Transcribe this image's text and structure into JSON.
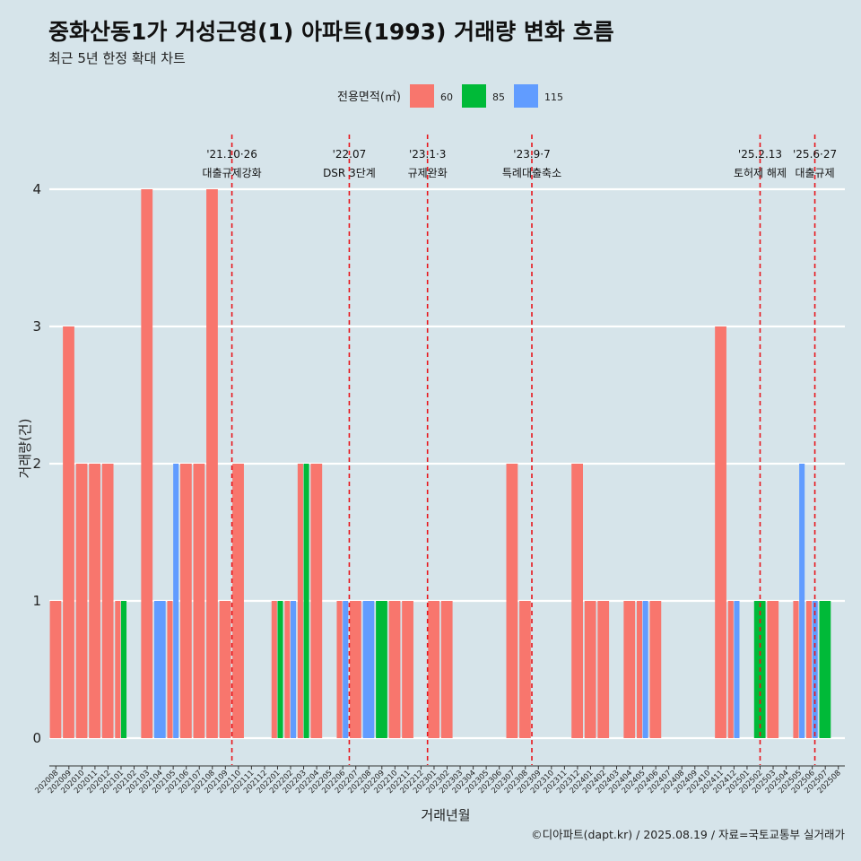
{
  "chart_data": {
    "type": "bar",
    "title": "중화산동1가 거성근영(1) 아파트(1993) 거래량 변화 흐름",
    "subtitle": "최근 5년 한정 확대 차트",
    "xlabel": "거래년월",
    "ylabel": "거래량(건)",
    "ylim": [
      0,
      4
    ],
    "yticks": [
      "0",
      "1",
      "2",
      "3",
      "4"
    ],
    "grid": true,
    "legend": {
      "title": "전용면적(㎡)",
      "position": "top"
    },
    "caption": "©디아파트(dapt.kr) / 2025.08.19 / 자료=국토교통부 실거래가",
    "categories": [
      "202008",
      "202009",
      "202010",
      "202011",
      "202012",
      "202101",
      "202102",
      "202103",
      "202104",
      "202105",
      "202106",
      "202107",
      "202108",
      "202109",
      "202110",
      "202111",
      "202112",
      "202201",
      "202202",
      "202203",
      "202204",
      "202205",
      "202206",
      "202207",
      "202208",
      "202209",
      "202210",
      "202211",
      "202212",
      "202301",
      "202302",
      "202303",
      "202304",
      "202305",
      "202306",
      "202307",
      "202308",
      "202309",
      "202310",
      "202311",
      "202312",
      "202401",
      "202402",
      "202403",
      "202404",
      "202405",
      "202406",
      "202407",
      "202408",
      "202409",
      "202410",
      "202411",
      "202412",
      "202501",
      "202502",
      "202503",
      "202504",
      "202505",
      "202506",
      "202507",
      "202508"
    ],
    "series": [
      {
        "name": "60",
        "color": "#f8766d",
        "values": [
          1,
          3,
          2,
          2,
          2,
          1,
          0,
          4,
          0,
          1,
          2,
          2,
          4,
          1,
          2,
          0,
          0,
          1,
          1,
          2,
          2,
          0,
          1,
          1,
          0,
          0,
          1,
          1,
          0,
          1,
          1,
          0,
          0,
          0,
          0,
          2,
          1,
          0,
          0,
          0,
          2,
          1,
          1,
          0,
          1,
          1,
          1,
          0,
          0,
          0,
          0,
          3,
          1,
          0,
          0,
          1,
          0,
          1,
          1,
          0,
          0
        ]
      },
      {
        "name": "85",
        "color": "#00ba38",
        "values": [
          0,
          0,
          0,
          0,
          0,
          1,
          0,
          0,
          0,
          0,
          0,
          0,
          0,
          0,
          0,
          0,
          0,
          1,
          0,
          2,
          0,
          0,
          0,
          0,
          0,
          1,
          0,
          0,
          0,
          0,
          0,
          0,
          0,
          0,
          0,
          0,
          0,
          0,
          0,
          0,
          0,
          0,
          0,
          0,
          0,
          0,
          0,
          0,
          0,
          0,
          0,
          0,
          0,
          0,
          1,
          0,
          0,
          0,
          0,
          1,
          0
        ]
      },
      {
        "name": "115",
        "color": "#619cff",
        "values": [
          0,
          0,
          0,
          0,
          0,
          0,
          0,
          0,
          1,
          2,
          0,
          0,
          0,
          0,
          0,
          0,
          0,
          0,
          1,
          0,
          0,
          0,
          1,
          0,
          1,
          0,
          0,
          0,
          0,
          0,
          0,
          0,
          0,
          0,
          0,
          0,
          0,
          0,
          0,
          0,
          0,
          0,
          0,
          0,
          0,
          1,
          0,
          0,
          0,
          0,
          0,
          0,
          1,
          0,
          0,
          0,
          0,
          2,
          1,
          0,
          0
        ]
      }
    ],
    "events": [
      {
        "position": 14.0,
        "date": "'21.10·26",
        "label": "대출규제강화"
      },
      {
        "position": 23.0,
        "date": "'22.07",
        "label": "DSR 3단계"
      },
      {
        "position": 29.0,
        "date": "'23.1·3",
        "label": "규제완화"
      },
      {
        "position": 37.0,
        "date": "'23.9·7",
        "label": "특례대출축소"
      },
      {
        "position": 54.5,
        "date": "'25.2.13",
        "label": "토허제 해제"
      },
      {
        "position": 58.7,
        "date": "'25.6·27",
        "label": "대출규제"
      }
    ]
  }
}
